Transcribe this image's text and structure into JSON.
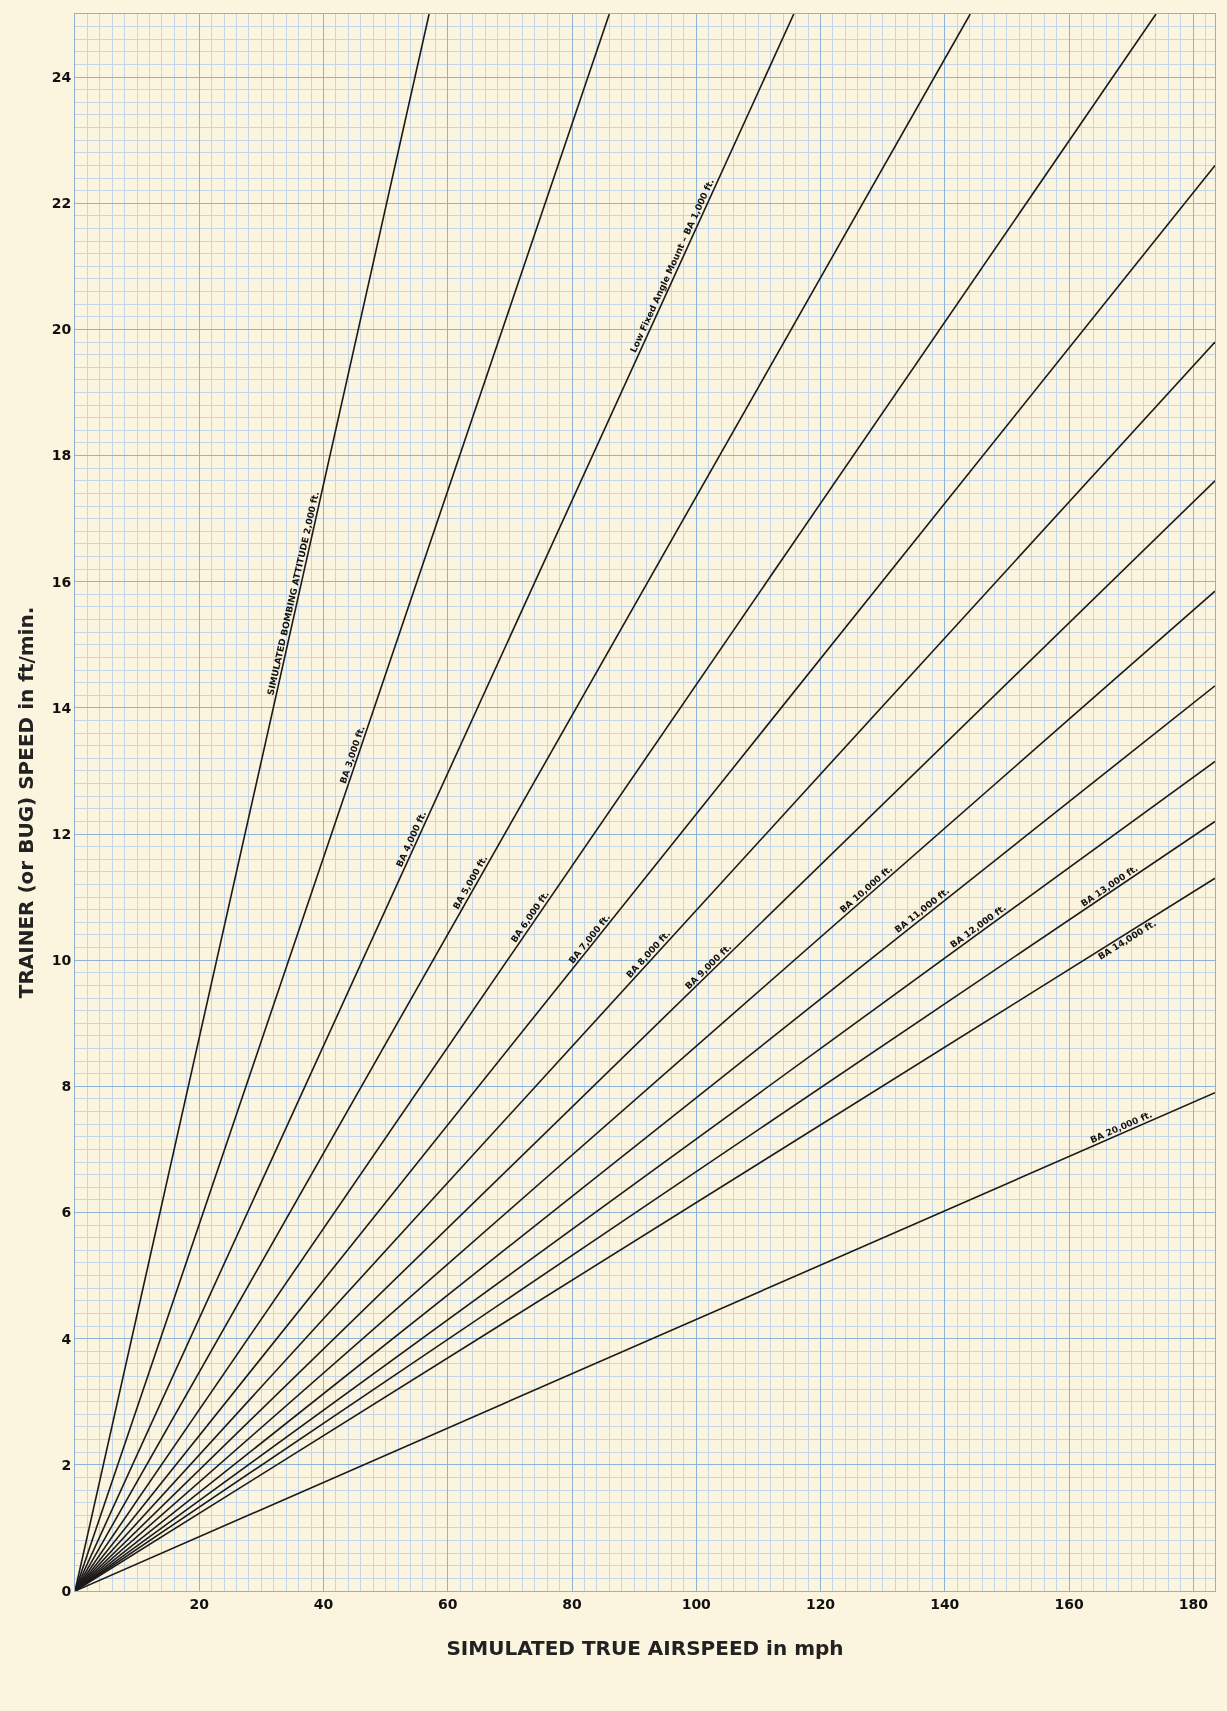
{
  "chart_data": {
    "type": "line",
    "xlabel": "SIMULATED TRUE AIRSPEED in mph",
    "ylabel": "TRAINER (or BUG) SPEED in ft/min.",
    "xlim": [
      0,
      183.5
    ],
    "ylim": [
      0,
      25
    ],
    "xticks": [
      20,
      40,
      60,
      80,
      100,
      120,
      140,
      160,
      180
    ],
    "yticks": [
      0,
      2,
      4,
      6,
      8,
      10,
      12,
      14,
      16,
      18,
      20,
      22,
      24
    ],
    "grid": true,
    "legend": false,
    "marker": "none",
    "line_style": "solid",
    "series": [
      {
        "name": "SIMULATED BOMBING ATTITUDE 2,000 ft.",
        "color": "#1a1a1a",
        "x": [
          0,
          57.0
        ],
        "values": [
          0,
          25
        ]
      },
      {
        "name": "BA 3,000 ft.",
        "color": "#1a1a1a",
        "x": [
          0,
          86.0
        ],
        "values": [
          0,
          25
        ]
      },
      {
        "name": "BA 4,000 ft.",
        "color": "#1a1a1a",
        "x": [
          0,
          115.7
        ],
        "values": [
          0,
          25
        ]
      },
      {
        "name": "BA 5,000 ft.",
        "color": "#1a1a1a",
        "x": [
          0,
          144.1
        ],
        "values": [
          0,
          25
        ]
      },
      {
        "name": "BA 6,000 ft.",
        "color": "#1a1a1a",
        "x": [
          0,
          174.0
        ],
        "values": [
          0,
          25
        ]
      },
      {
        "name": "BA 7,000 ft.",
        "color": "#1a1a1a",
        "x": [
          0,
          183.5
        ],
        "values": [
          0,
          22.6
        ]
      },
      {
        "name": "BA 8,000 ft.",
        "color": "#1a1a1a",
        "x": [
          0,
          183.5
        ],
        "values": [
          0,
          19.8
        ]
      },
      {
        "name": "BA 9,000 ft.",
        "color": "#1a1a1a",
        "x": [
          0,
          183.5
        ],
        "values": [
          0,
          17.6
        ]
      },
      {
        "name": "BA 10,000 ft.",
        "color": "#1a1a1a",
        "x": [
          0,
          183.5
        ],
        "values": [
          0,
          15.85
        ]
      },
      {
        "name": "BA 11,000 ft.",
        "color": "#1a1a1a",
        "x": [
          0,
          183.5
        ],
        "values": [
          0,
          14.35
        ]
      },
      {
        "name": "BA 12,000 ft.",
        "color": "#1a1a1a",
        "x": [
          0,
          183.5
        ],
        "values": [
          0,
          13.15
        ]
      },
      {
        "name": "BA 13,000 ft.",
        "color": "#1a1a1a",
        "x": [
          0,
          183.5
        ],
        "values": [
          0,
          12.2
        ]
      },
      {
        "name": "BA 14,000 ft.",
        "color": "#1a1a1a",
        "x": [
          0,
          183.5
        ],
        "values": [
          0,
          11.3
        ]
      },
      {
        "name": "BA 20,000 ft.",
        "color": "#1a1a1a",
        "x": [
          0,
          183.5
        ],
        "values": [
          0,
          7.9
        ]
      }
    ],
    "annotations": [
      {
        "text": "Low Fixed Angle Mount – BA 1,000 ft.",
        "x": 97,
        "y": 20.96
      }
    ]
  }
}
